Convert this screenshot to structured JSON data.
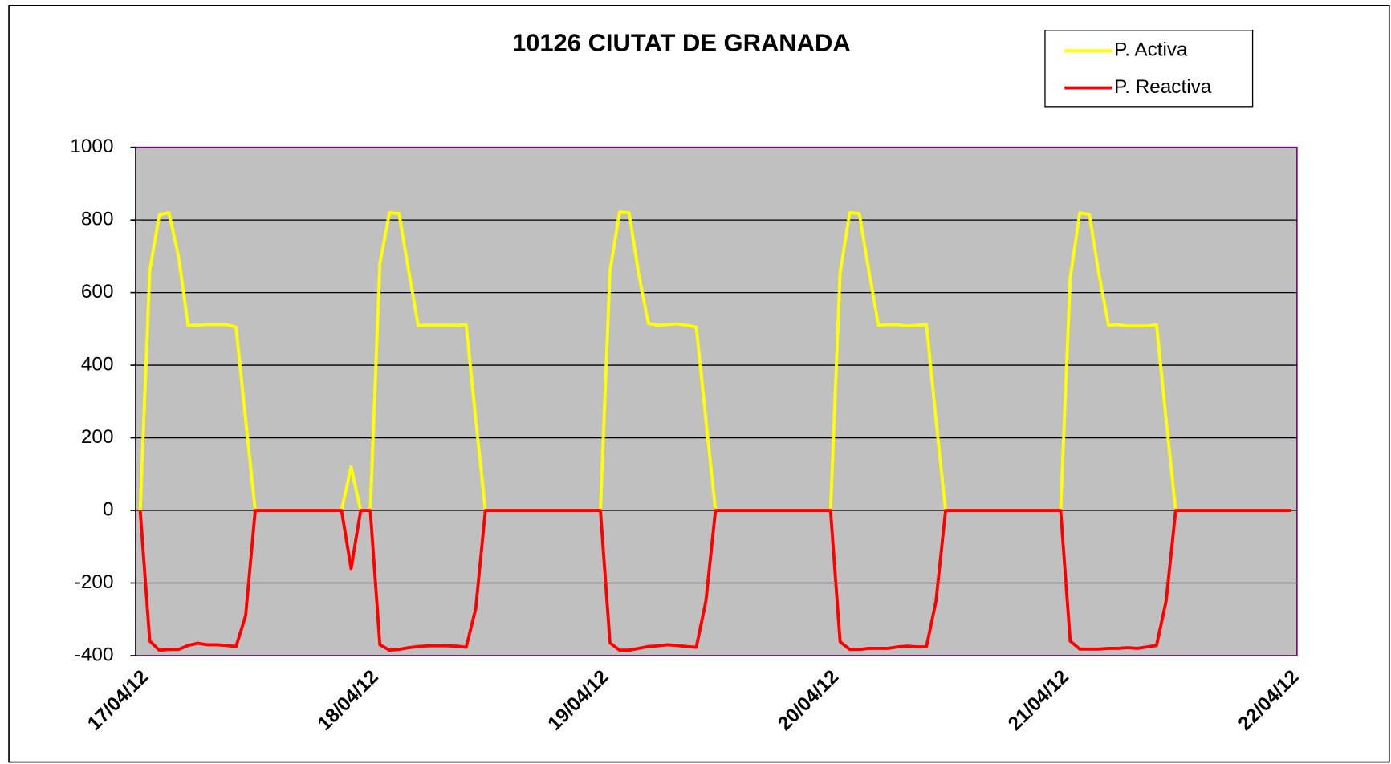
{
  "chart_data": {
    "type": "line",
    "title": "10126 CIUTAT DE GRANADA",
    "categories": [
      "17/04/12",
      null,
      null,
      null,
      null,
      null,
      null,
      null,
      null,
      null,
      null,
      null,
      null,
      null,
      null,
      null,
      null,
      null,
      null,
      null,
      null,
      null,
      null,
      null,
      "18/04/12",
      null,
      null,
      null,
      null,
      null,
      null,
      null,
      null,
      null,
      null,
      null,
      null,
      null,
      null,
      null,
      null,
      null,
      null,
      null,
      null,
      null,
      null,
      null,
      "19/04/12",
      null,
      null,
      null,
      null,
      null,
      null,
      null,
      null,
      null,
      null,
      null,
      null,
      null,
      null,
      null,
      null,
      null,
      null,
      null,
      null,
      null,
      null,
      null,
      "20/04/12",
      null,
      null,
      null,
      null,
      null,
      null,
      null,
      null,
      null,
      null,
      null,
      null,
      null,
      null,
      null,
      null,
      null,
      null,
      null,
      null,
      null,
      null,
      null,
      "21/04/12",
      null,
      null,
      null,
      null,
      null,
      null,
      null,
      null,
      null,
      null,
      null,
      null,
      null,
      null,
      null,
      null,
      null,
      null,
      null,
      null,
      null,
      null,
      null,
      "22/04/12"
    ],
    "series": [
      {
        "name": "P. Activa",
        "color": "#ffff00",
        "values": [
          0,
          660,
          815,
          820,
          700,
          510,
          510,
          512,
          512,
          512,
          505,
          250,
          0,
          0,
          0,
          0,
          0,
          0,
          0,
          0,
          0,
          0,
          120,
          0,
          0,
          680,
          820,
          818,
          660,
          510,
          510,
          510,
          510,
          510,
          512,
          250,
          0,
          0,
          0,
          0,
          0,
          0,
          0,
          0,
          0,
          0,
          0,
          0,
          0,
          660,
          822,
          820,
          650,
          515,
          510,
          512,
          514,
          510,
          505,
          250,
          0,
          0,
          0,
          0,
          0,
          0,
          0,
          0,
          0,
          0,
          0,
          0,
          0,
          655,
          820,
          818,
          660,
          510,
          512,
          512,
          508,
          510,
          512,
          250,
          0,
          0,
          0,
          0,
          0,
          0,
          0,
          0,
          0,
          0,
          0,
          0,
          0,
          640,
          820,
          815,
          650,
          510,
          512,
          508,
          508,
          508,
          512,
          250,
          0,
          0,
          0,
          0,
          0,
          0,
          0,
          0,
          0,
          0,
          0,
          0,
          0
        ]
      },
      {
        "name": "P. Reactiva",
        "color": "#ff0000",
        "values": [
          0,
          -360,
          -385,
          -383,
          -383,
          -372,
          -366,
          -370,
          -370,
          -372,
          -375,
          -290,
          0,
          0,
          0,
          0,
          0,
          0,
          0,
          0,
          0,
          0,
          -160,
          0,
          0,
          -370,
          -385,
          -383,
          -378,
          -375,
          -373,
          -373,
          -373,
          -374,
          -377,
          -270,
          0,
          0,
          0,
          0,
          0,
          0,
          0,
          0,
          0,
          0,
          0,
          0,
          0,
          -365,
          -385,
          -385,
          -380,
          -375,
          -373,
          -370,
          -372,
          -375,
          -377,
          -250,
          0,
          0,
          0,
          0,
          0,
          0,
          0,
          0,
          0,
          0,
          0,
          0,
          0,
          -362,
          -383,
          -383,
          -380,
          -380,
          -380,
          -376,
          -374,
          -376,
          -376,
          -250,
          0,
          0,
          0,
          0,
          0,
          0,
          0,
          0,
          0,
          0,
          0,
          0,
          0,
          -360,
          -382,
          -382,
          -382,
          -380,
          -380,
          -378,
          -380,
          -376,
          -372,
          -250,
          0,
          0,
          0,
          0,
          0,
          0,
          0,
          0,
          0,
          0,
          0,
          0,
          0
        ]
      }
    ],
    "ylim": [
      -400,
      1000
    ],
    "yticks": [
      -400,
      -200,
      0,
      200,
      400,
      600,
      800,
      1000
    ],
    "grid": true,
    "legend": "top-right"
  }
}
